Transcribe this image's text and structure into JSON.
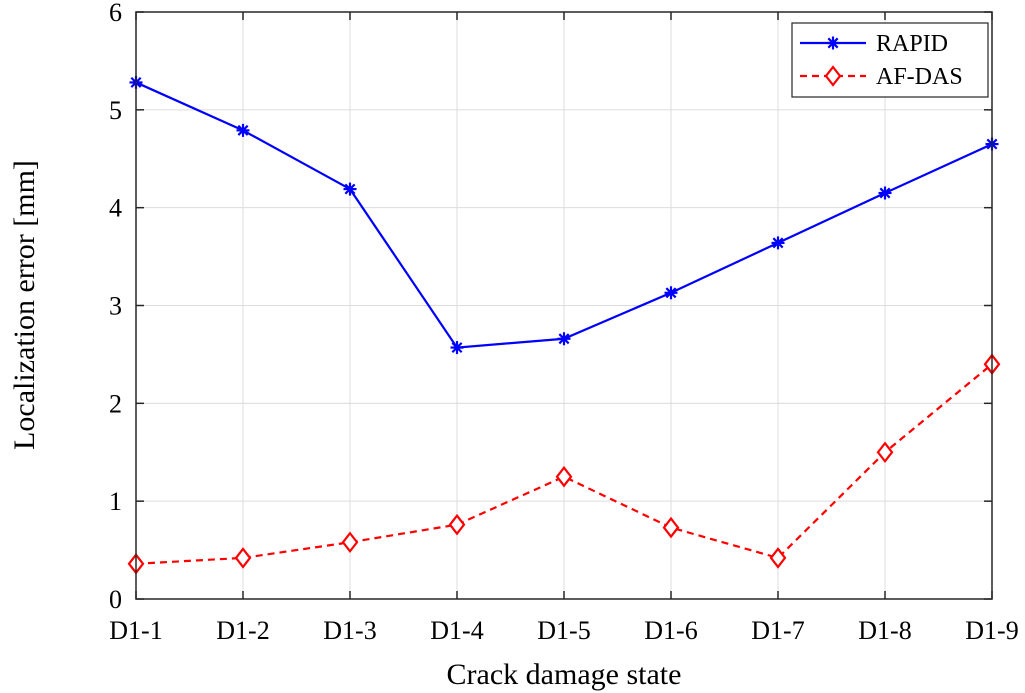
{
  "chart_data": {
    "type": "line",
    "title": "",
    "xlabel": "Crack damage state",
    "ylabel": "Localization error [mm]",
    "categories": [
      "D1-1",
      "D1-2",
      "D1-3",
      "D1-4",
      "D1-5",
      "D1-6",
      "D1-7",
      "D1-8",
      "D1-9"
    ],
    "ylim": [
      0,
      6
    ],
    "yticks": [
      "0",
      "1",
      "2",
      "3",
      "4",
      "5",
      "6"
    ],
    "grid": true,
    "legend_position": "top-right",
    "series": [
      {
        "name": "RAPID",
        "color": "#0000ff",
        "line_style": "solid",
        "marker": "asterisk",
        "values": [
          5.28,
          4.79,
          4.19,
          2.57,
          2.66,
          3.13,
          3.64,
          4.15,
          4.65
        ]
      },
      {
        "name": "AF-DAS",
        "color": "#ff0000",
        "line_style": "dashed",
        "marker": "diamond",
        "values": [
          0.36,
          0.42,
          0.58,
          0.76,
          1.25,
          0.73,
          0.42,
          1.5,
          2.4
        ]
      }
    ]
  }
}
